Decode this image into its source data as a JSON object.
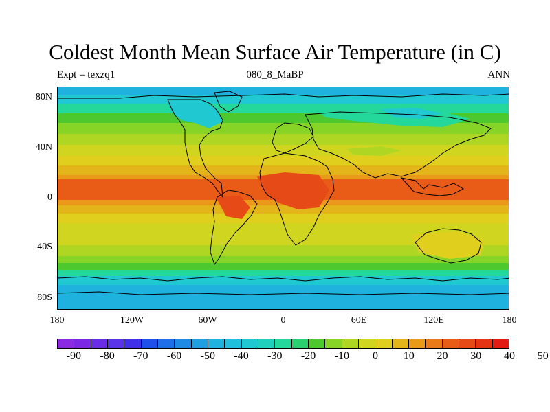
{
  "header": {
    "title": "Coldest Month Mean Surface Air Temperature (in C)",
    "left_label": "Expt = texzq1",
    "center_label": "080_8_MaBP",
    "right_label": "ANN"
  },
  "axes": {
    "y_ticks": [
      "80N",
      "40N",
      "0",
      "40S",
      "80S"
    ],
    "x_ticks": [
      "180",
      "120W",
      "60W",
      "0",
      "60E",
      "120E",
      "180"
    ]
  },
  "colorbar": {
    "labels": [
      "-90",
      "-80",
      "-70",
      "-60",
      "-50",
      "-40",
      "-30",
      "-20",
      "-10",
      "0",
      "10",
      "20",
      "30",
      "40",
      "50"
    ],
    "colors": [
      "#8a2be2",
      "#7b27e4",
      "#6a2de6",
      "#5a34e8",
      "#4030ea",
      "#2050ea",
      "#1f6fe8",
      "#1f8ae6",
      "#1f9fe0",
      "#1fb2df",
      "#1fc0dc",
      "#20c8d2",
      "#20d0bd",
      "#24d89c",
      "#2ad070",
      "#4dc82e",
      "#88d426",
      "#b0d624",
      "#d0d620",
      "#e0cf1c",
      "#e4b51a",
      "#e89a18",
      "#ea7a18",
      "#e85c18",
      "#e64a16",
      "#e43414",
      "#e21c14"
    ]
  },
  "map": {
    "colors": {
      "polar_cold": "#1fb2df",
      "cold": "#20c8d2",
      "cool": "#24d89c",
      "mild": "#4dc82e",
      "light": "#88d426",
      "temperate": "#b0d624",
      "warm": "#d0d620",
      "warmer": "#e0cf1c",
      "hot": "#e4b51a",
      "hotter": "#e89a18",
      "tropical": "#e85c18",
      "desert": "#e64a16"
    }
  }
}
